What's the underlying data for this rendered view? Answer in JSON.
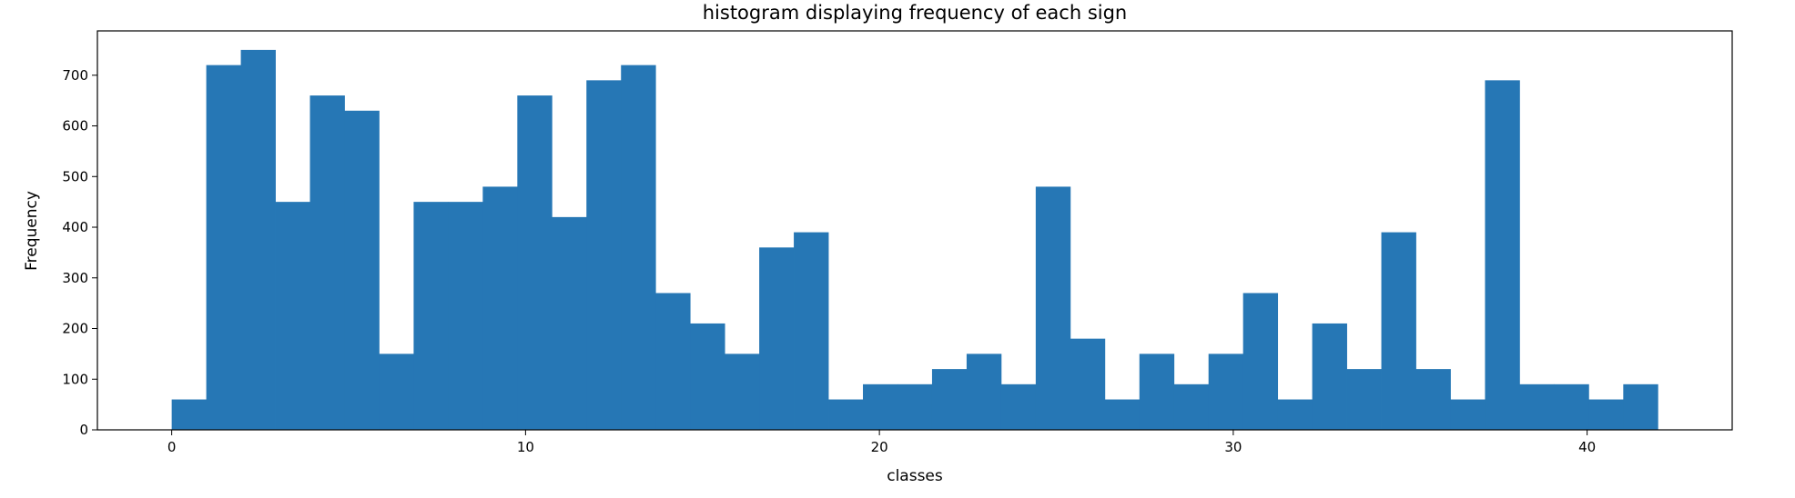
{
  "chart_data": {
    "type": "bar",
    "title": "histogram displaying frequency of each sign",
    "xlabel": "classes",
    "ylabel": "Frequency",
    "bin_edges_start": 0,
    "bin_width": 0.9767,
    "values": [
      60,
      720,
      750,
      450,
      660,
      630,
      150,
      450,
      450,
      480,
      660,
      420,
      690,
      720,
      270,
      210,
      150,
      360,
      390,
      60,
      90,
      90,
      120,
      150,
      90,
      480,
      180,
      60,
      150,
      90,
      150,
      270,
      60,
      210,
      120,
      390,
      120,
      60,
      690,
      90,
      90,
      60,
      90
    ],
    "xlim": [
      -2.1,
      44.1
    ],
    "ylim": [
      0,
      787.5
    ],
    "xticks": [
      0,
      10,
      20,
      30,
      40
    ],
    "yticks": [
      0,
      100,
      200,
      300,
      400,
      500,
      600,
      700
    ],
    "bar_color": "#2677b5",
    "grid": false,
    "legend": "none"
  }
}
